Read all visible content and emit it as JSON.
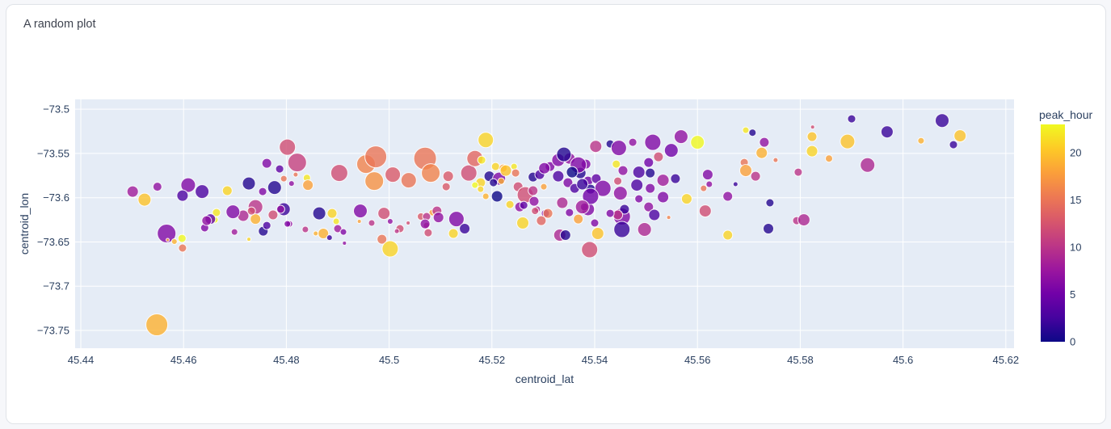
{
  "card": {
    "title": "A random plot"
  },
  "colors": {
    "page_bg": "#f6f7fa",
    "card_bg": "#ffffff",
    "card_border": "#e0e3e8",
    "plot_bg": "#e5ecf6",
    "grid": "#ffffff",
    "tick_label": "#2a3f5f",
    "axis_title": "#2a3f5f",
    "card_title": "#3f4450",
    "marker_stroke": "#ffffff"
  },
  "chart_data": {
    "type": "scatter",
    "title": "A random plot",
    "xlabel": "centroid_lat",
    "ylabel": "centroid_lon",
    "x_range": [
      45.4389,
      45.6216
    ],
    "y_range": [
      -73.7701,
      -73.4889
    ],
    "x_ticks": [
      45.44,
      45.46,
      45.48,
      45.5,
      45.52,
      45.54,
      45.56,
      45.58,
      45.6,
      45.62
    ],
    "x_tick_labels": [
      "45.44",
      "45.46",
      "45.48",
      "45.5",
      "45.52",
      "45.54",
      "45.56",
      "45.58",
      "45.6",
      "45.62"
    ],
    "y_ticks": [
      -73.5,
      -73.55,
      -73.6,
      -73.65,
      -73.7,
      -73.75
    ],
    "y_tick_labels": [
      "−73.5",
      "−73.55",
      "−73.6",
      "−73.65",
      "−73.7",
      "−73.75"
    ],
    "grid": true,
    "legend_position": "colorbar-right",
    "colorbar": {
      "title": "peak_hour",
      "min": 0,
      "max": 23,
      "ticks": [
        0,
        5,
        10,
        15,
        20
      ],
      "tick_labels": [
        "0",
        "5",
        "10",
        "15",
        "20"
      ]
    },
    "colorscale_plasma": [
      [
        0.0,
        "#0d0887"
      ],
      [
        0.1111,
        "#46039f"
      ],
      [
        0.2222,
        "#7201a8"
      ],
      [
        0.3333,
        "#9c179e"
      ],
      [
        0.4444,
        "#bd3786"
      ],
      [
        0.5556,
        "#d8576b"
      ],
      [
        0.6667,
        "#ed7953"
      ],
      [
        0.7778,
        "#fb9f3a"
      ],
      [
        0.8889,
        "#fdca26"
      ],
      [
        1.0,
        "#f0f921"
      ]
    ],
    "marker_opacity": 0.8,
    "point_fields": [
      "centroid_lat",
      "centroid_lon",
      "marker_radius_px",
      "peak_hour"
    ],
    "points": [
      [
        45.4501,
        -73.5931,
        7,
        8
      ],
      [
        45.4524,
        -73.6022,
        8,
        20
      ],
      [
        45.4549,
        -73.5876,
        5.5,
        7
      ],
      [
        45.4609,
        -73.5858,
        9,
        6
      ],
      [
        45.4598,
        -73.5976,
        7,
        3
      ],
      [
        45.4636,
        -73.5931,
        8.5,
        3
      ],
      [
        45.4685,
        -73.5921,
        6,
        21
      ],
      [
        45.4727,
        -73.5839,
        8,
        1
      ],
      [
        45.4754,
        -73.5931,
        5,
        6
      ],
      [
        45.4777,
        -73.5885,
        8.5,
        1
      ],
      [
        45.474,
        -73.6104,
        9,
        10
      ],
      [
        45.4802,
        -73.5429,
        10,
        12
      ],
      [
        45.4821,
        -73.5602,
        11.5,
        11
      ],
      [
        45.4762,
        -73.5611,
        6,
        6
      ],
      [
        45.4787,
        -73.5675,
        5,
        4
      ],
      [
        45.4795,
        -73.5785,
        4,
        15
      ],
      [
        45.484,
        -73.5776,
        4.5,
        22
      ],
      [
        45.4842,
        -73.5858,
        6.5,
        18
      ],
      [
        45.481,
        -73.5839,
        3.5,
        7
      ],
      [
        45.4818,
        -73.5739,
        3,
        15
      ],
      [
        45.4716,
        -73.6204,
        7,
        9
      ],
      [
        45.4696,
        -73.6159,
        8.5,
        6
      ],
      [
        45.4664,
        -73.6168,
        5,
        22
      ],
      [
        45.4661,
        -73.625,
        4,
        23
      ],
      [
        45.4652,
        -73.6241,
        6.5,
        4
      ],
      [
        45.4641,
        -73.6341,
        5,
        6
      ],
      [
        45.4567,
        -73.6405,
        11.5,
        6
      ],
      [
        45.4597,
        -73.646,
        5,
        23
      ],
      [
        45.4582,
        -73.6496,
        3.5,
        19
      ],
      [
        45.4598,
        -73.6569,
        5,
        15
      ],
      [
        45.4569,
        -73.6478,
        2,
        18
      ],
      [
        45.4837,
        -73.6359,
        4,
        10
      ],
      [
        45.4806,
        -73.6296,
        4,
        7
      ],
      [
        45.4755,
        -73.6378,
        6,
        1
      ],
      [
        45.474,
        -73.6241,
        6.5,
        19
      ],
      [
        45.4774,
        -73.6195,
        6,
        12
      ],
      [
        45.4795,
        -73.6131,
        8,
        2
      ],
      [
        45.4727,
        -73.6469,
        2.5,
        21
      ],
      [
        45.4699,
        -73.6387,
        4,
        8
      ],
      [
        45.4548,
        -73.7436,
        13.5,
        19
      ],
      [
        45.4645,
        -73.6259,
        6,
        7
      ],
      [
        45.4732,
        -73.615,
        5,
        12
      ],
      [
        45.4762,
        -73.6314,
        5,
        3
      ],
      [
        45.4789,
        -73.6131,
        5,
        7
      ],
      [
        45.4802,
        -73.6296,
        4,
        6
      ],
      [
        45.4857,
        -73.6405,
        3,
        19
      ],
      [
        45.4864,
        -73.6177,
        8,
        1
      ],
      [
        45.4889,
        -73.6177,
        6,
        21
      ],
      [
        45.4897,
        -73.6268,
        4,
        22
      ],
      [
        45.49,
        -73.635,
        5,
        8
      ],
      [
        45.4872,
        -73.6405,
        6.5,
        19
      ],
      [
        45.4884,
        -73.6451,
        3.5,
        2
      ],
      [
        45.4911,
        -73.6387,
        4,
        6
      ],
      [
        45.4913,
        -73.6514,
        2.5,
        7
      ],
      [
        45.4942,
        -73.6268,
        2.5,
        18
      ],
      [
        45.4944,
        -73.615,
        8.5,
        6
      ],
      [
        45.4966,
        -73.6286,
        4,
        10
      ],
      [
        45.499,
        -73.6177,
        7.5,
        12
      ],
      [
        45.5002,
        -73.6268,
        3.5,
        7
      ],
      [
        45.4986,
        -73.6469,
        6,
        15
      ],
      [
        45.5002,
        -73.6578,
        10,
        21
      ],
      [
        45.4903,
        -73.5721,
        10.5,
        12
      ],
      [
        45.4955,
        -73.562,
        11.5,
        16
      ],
      [
        45.4974,
        -73.5538,
        13.5,
        15
      ],
      [
        45.4971,
        -73.5812,
        11.5,
        17
      ],
      [
        45.5007,
        -73.5739,
        9.5,
        13
      ],
      [
        45.5038,
        -73.5803,
        9.5,
        15
      ],
      [
        45.507,
        -73.5557,
        14,
        15
      ],
      [
        45.5081,
        -73.5721,
        11.5,
        16
      ],
      [
        45.5115,
        -73.5757,
        6.5,
        13
      ],
      [
        45.5155,
        -73.5721,
        10,
        12
      ],
      [
        45.5167,
        -73.5557,
        10,
        14
      ],
      [
        45.5188,
        -73.5347,
        9.5,
        21
      ],
      [
        45.5178,
        -73.583,
        6,
        21
      ],
      [
        45.5021,
        -73.635,
        5,
        12
      ],
      [
        45.5037,
        -73.6286,
        2.5,
        12
      ],
      [
        45.5062,
        -73.6213,
        4.5,
        13
      ],
      [
        45.5073,
        -73.6314,
        4,
        10
      ],
      [
        45.5076,
        -73.6396,
        5,
        12
      ],
      [
        45.5084,
        -73.6168,
        4,
        18
      ],
      [
        45.5093,
        -73.615,
        6,
        10
      ],
      [
        45.5096,
        -73.6223,
        6.5,
        7
      ],
      [
        45.5131,
        -73.6241,
        9.5,
        6
      ],
      [
        45.5125,
        -73.6405,
        6,
        21
      ],
      [
        45.5147,
        -73.635,
        6.5,
        2
      ],
      [
        45.5073,
        -73.6213,
        5,
        10
      ],
      [
        45.507,
        -73.6296,
        6,
        7
      ],
      [
        45.5015,
        -73.6378,
        3,
        10
      ],
      [
        45.5111,
        -73.5876,
        5,
        13
      ],
      [
        45.518,
        -73.5575,
        5,
        22
      ],
      [
        45.5195,
        -73.5757,
        6.5,
        1
      ],
      [
        45.5207,
        -73.5648,
        5,
        21
      ],
      [
        45.5214,
        -73.5785,
        8,
        6
      ],
      [
        45.5222,
        -73.5666,
        5,
        18
      ],
      [
        45.5227,
        -73.5693,
        7,
        20
      ],
      [
        45.5243,
        -73.5648,
        4,
        22
      ],
      [
        45.5203,
        -73.583,
        5,
        1
      ],
      [
        45.5218,
        -73.5812,
        4,
        19
      ],
      [
        45.5178,
        -73.5903,
        4,
        21
      ],
      [
        45.5188,
        -73.5985,
        4,
        19
      ],
      [
        45.5167,
        -73.5858,
        4,
        23
      ],
      [
        45.521,
        -73.5985,
        7,
        0
      ],
      [
        45.5246,
        -73.5721,
        5,
        15
      ],
      [
        45.5251,
        -73.5876,
        6,
        12
      ],
      [
        45.5265,
        -73.5967,
        10,
        12
      ],
      [
        45.528,
        -73.5921,
        6,
        10
      ],
      [
        45.5235,
        -73.6077,
        5,
        21
      ],
      [
        45.5254,
        -73.6104,
        6,
        7
      ],
      [
        45.5301,
        -73.5876,
        4,
        18
      ],
      [
        45.528,
        -73.5766,
        6,
        1
      ],
      [
        45.5293,
        -73.5739,
        6,
        3
      ],
      [
        45.5313,
        -73.5648,
        6,
        6
      ],
      [
        45.5329,
        -73.5575,
        8,
        6
      ],
      [
        45.5351,
        -73.5557,
        7,
        7
      ],
      [
        45.5329,
        -73.5757,
        7,
        3
      ],
      [
        45.5348,
        -73.583,
        6,
        6
      ],
      [
        45.5372,
        -73.5721,
        7,
        1
      ],
      [
        45.5387,
        -73.5812,
        6,
        5
      ],
      [
        45.5361,
        -73.5894,
        6,
        3
      ],
      [
        45.5383,
        -73.562,
        6,
        6
      ],
      [
        45.5288,
        -73.6131,
        4,
        9
      ],
      [
        45.5304,
        -73.6177,
        5,
        6
      ],
      [
        45.5337,
        -73.6058,
        7,
        9
      ],
      [
        45.5351,
        -73.6168,
        5,
        6
      ],
      [
        45.5387,
        -73.6131,
        8,
        6
      ],
      [
        45.5392,
        -73.5903,
        6,
        1
      ],
      [
        45.526,
        -73.6286,
        7.5,
        21
      ],
      [
        45.5284,
        -73.615,
        4.5,
        12
      ],
      [
        45.5309,
        -73.6177,
        6,
        15
      ],
      [
        45.5296,
        -73.6259,
        6,
        14
      ],
      [
        45.5332,
        -73.6423,
        7.5,
        9
      ],
      [
        45.5368,
        -73.6241,
        6,
        18
      ],
      [
        45.538,
        -73.6104,
        5,
        5
      ],
      [
        45.539,
        -73.6587,
        10,
        12
      ],
      [
        45.5406,
        -73.6405,
        7.5,
        20
      ],
      [
        45.54,
        -73.6286,
        5,
        6
      ],
      [
        45.5302,
        -73.5667,
        7,
        6
      ],
      [
        45.5282,
        -73.604,
        6,
        7
      ],
      [
        45.5262,
        -73.6086,
        5,
        4
      ],
      [
        45.534,
        -73.5511,
        9,
        1
      ],
      [
        45.5368,
        -73.563,
        10,
        6
      ],
      [
        45.5356,
        -73.5712,
        7,
        0
      ],
      [
        45.5376,
        -73.5848,
        7,
        2
      ],
      [
        45.5403,
        -73.5785,
        6,
        4
      ],
      [
        45.5402,
        -73.542,
        7.5,
        10
      ],
      [
        45.543,
        -73.5392,
        5,
        1
      ],
      [
        45.5447,
        -73.5438,
        9.5,
        6
      ],
      [
        45.5474,
        -73.5374,
        5,
        7
      ],
      [
        45.5513,
        -73.5374,
        10,
        6
      ],
      [
        45.5568,
        -73.531,
        8.5,
        7
      ],
      [
        45.56,
        -73.5374,
        8.5,
        23
      ],
      [
        45.5549,
        -73.5465,
        8.5,
        5
      ],
      [
        45.5524,
        -73.5538,
        6,
        12
      ],
      [
        45.5442,
        -73.562,
        5,
        22
      ],
      [
        45.5455,
        -73.5693,
        6,
        7
      ],
      [
        45.5486,
        -73.5712,
        7.5,
        3
      ],
      [
        45.5508,
        -73.5721,
        6,
        1
      ],
      [
        45.5505,
        -73.5602,
        6,
        5
      ],
      [
        45.5445,
        -73.5812,
        5,
        12
      ],
      [
        45.5416,
        -73.5894,
        10,
        6
      ],
      [
        45.545,
        -73.5949,
        8.5,
        7
      ],
      [
        45.5482,
        -73.5858,
        7.5,
        3
      ],
      [
        45.5508,
        -73.5894,
        6,
        6
      ],
      [
        45.5533,
        -73.5803,
        7.5,
        8
      ],
      [
        45.5557,
        -73.5785,
        6,
        2
      ],
      [
        45.5533,
        -73.5994,
        7,
        6
      ],
      [
        45.5505,
        -73.6104,
        6,
        7
      ],
      [
        45.5516,
        -73.6195,
        7,
        3
      ],
      [
        45.5486,
        -73.6013,
        5,
        6
      ],
      [
        45.5453,
        -73.6213,
        10.5,
        6
      ],
      [
        45.5453,
        -73.6359,
        10,
        2
      ],
      [
        45.5497,
        -73.6359,
        8.5,
        9
      ],
      [
        45.5392,
        -73.5985,
        10,
        5
      ],
      [
        45.5376,
        -73.6104,
        8.5,
        8
      ],
      [
        45.5343,
        -73.6423,
        6.5,
        1
      ],
      [
        45.5458,
        -73.6131,
        6,
        2
      ],
      [
        45.5445,
        -73.6195,
        6,
        10
      ],
      [
        45.543,
        -73.6177,
        5,
        6
      ],
      [
        45.5694,
        -73.5237,
        4,
        22
      ],
      [
        45.5707,
        -73.5265,
        4.5,
        1
      ],
      [
        45.573,
        -73.5374,
        6,
        7
      ],
      [
        45.5725,
        -73.5493,
        7,
        19
      ],
      [
        45.5691,
        -73.5602,
        5,
        15
      ],
      [
        45.5694,
        -73.5693,
        7.5,
        18
      ],
      [
        45.5713,
        -73.5757,
        6,
        10
      ],
      [
        45.5752,
        -73.5575,
        3,
        15
      ],
      [
        45.5674,
        -73.5848,
        3,
        2
      ],
      [
        45.5612,
        -73.5894,
        4,
        15
      ],
      [
        45.562,
        -73.5739,
        6.5,
        6
      ],
      [
        45.5623,
        -73.5848,
        4,
        7
      ],
      [
        45.5579,
        -73.6013,
        6.5,
        21
      ],
      [
        45.5659,
        -73.5985,
        6,
        7
      ],
      [
        45.5615,
        -73.615,
        7.5,
        12
      ],
      [
        45.5741,
        -73.6058,
        5,
        1
      ],
      [
        45.5659,
        -73.6423,
        6,
        21
      ],
      [
        45.5738,
        -73.635,
        6.5,
        1
      ],
      [
        45.5793,
        -73.6259,
        5,
        10
      ],
      [
        45.5544,
        -73.6223,
        2.5,
        16
      ],
      [
        45.5796,
        -73.5712,
        5,
        10
      ],
      [
        45.5824,
        -73.5201,
        2.5,
        12
      ],
      [
        45.59,
        -73.5109,
        5,
        2
      ],
      [
        45.5969,
        -73.5256,
        7.5,
        2
      ],
      [
        45.6076,
        -73.5128,
        8.5,
        2
      ],
      [
        45.5823,
        -73.531,
        6,
        20
      ],
      [
        45.5823,
        -73.5474,
        7,
        21
      ],
      [
        45.5892,
        -73.5365,
        9,
        20
      ],
      [
        45.6035,
        -73.5356,
        4,
        19
      ],
      [
        45.6111,
        -73.5301,
        7.5,
        20
      ],
      [
        45.6098,
        -73.5401,
        5,
        2
      ],
      [
        45.5856,
        -73.5557,
        4.5,
        18
      ],
      [
        45.5931,
        -73.563,
        9,
        9
      ],
      [
        45.5807,
        -73.625,
        7.5,
        9
      ]
    ]
  }
}
